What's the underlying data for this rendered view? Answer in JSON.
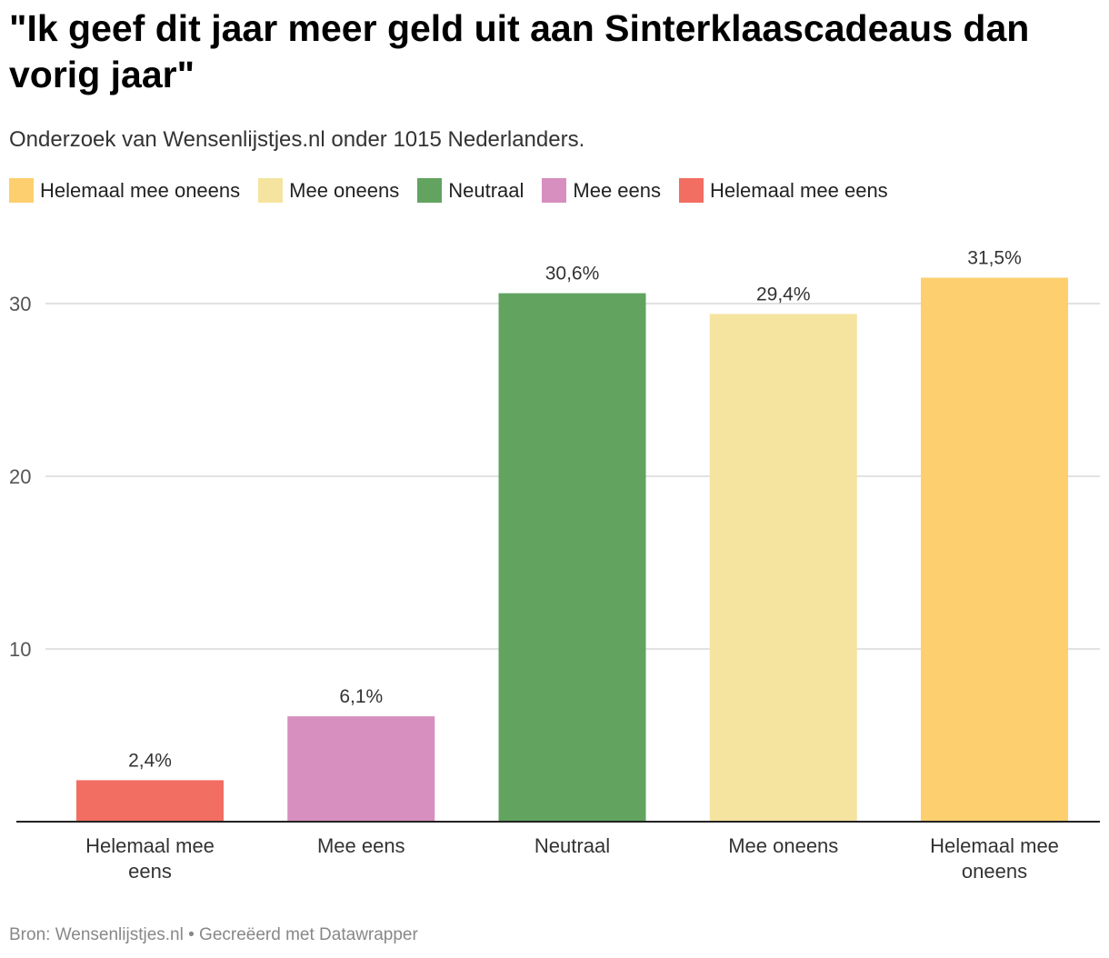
{
  "title": "\"Ik geef dit jaar meer geld uit aan Sinterklaascadeaus dan vorig jaar\"",
  "subtitle": "Onderzoek van Wensenlijstjes.nl onder 1015 Nederlanders.",
  "legend": [
    {
      "label": "Helemaal mee oneens",
      "color": "#fdcf6f"
    },
    {
      "label": "Mee oneens",
      "color": "#f5e4a0"
    },
    {
      "label": "Neutraal",
      "color": "#62a360"
    },
    {
      "label": "Mee eens",
      "color": "#d78fbf"
    },
    {
      "label": "Helemaal mee eens",
      "color": "#f26d62"
    }
  ],
  "footer": "Bron: Wensenlijstjes.nl • Gecreëerd met Datawrapper",
  "chart_data": {
    "type": "bar",
    "categories": [
      [
        "Helemaal mee",
        "eens"
      ],
      [
        "Mee eens"
      ],
      [
        "Neutraal"
      ],
      [
        "Mee oneens"
      ],
      [
        "Helemaal mee",
        "oneens"
      ]
    ],
    "values": [
      2.4,
      6.1,
      30.6,
      29.4,
      31.5
    ],
    "value_labels": [
      "2,4%",
      "6,1%",
      "30,6%",
      "29,4%",
      "31,5%"
    ],
    "colors": [
      "#f26d62",
      "#d78fbf",
      "#62a360",
      "#f5e4a0",
      "#fdcf6f"
    ],
    "yticks": [
      10,
      20,
      30
    ],
    "ylim": [
      0,
      30
    ],
    "grid": true,
    "legend_position": "top"
  }
}
